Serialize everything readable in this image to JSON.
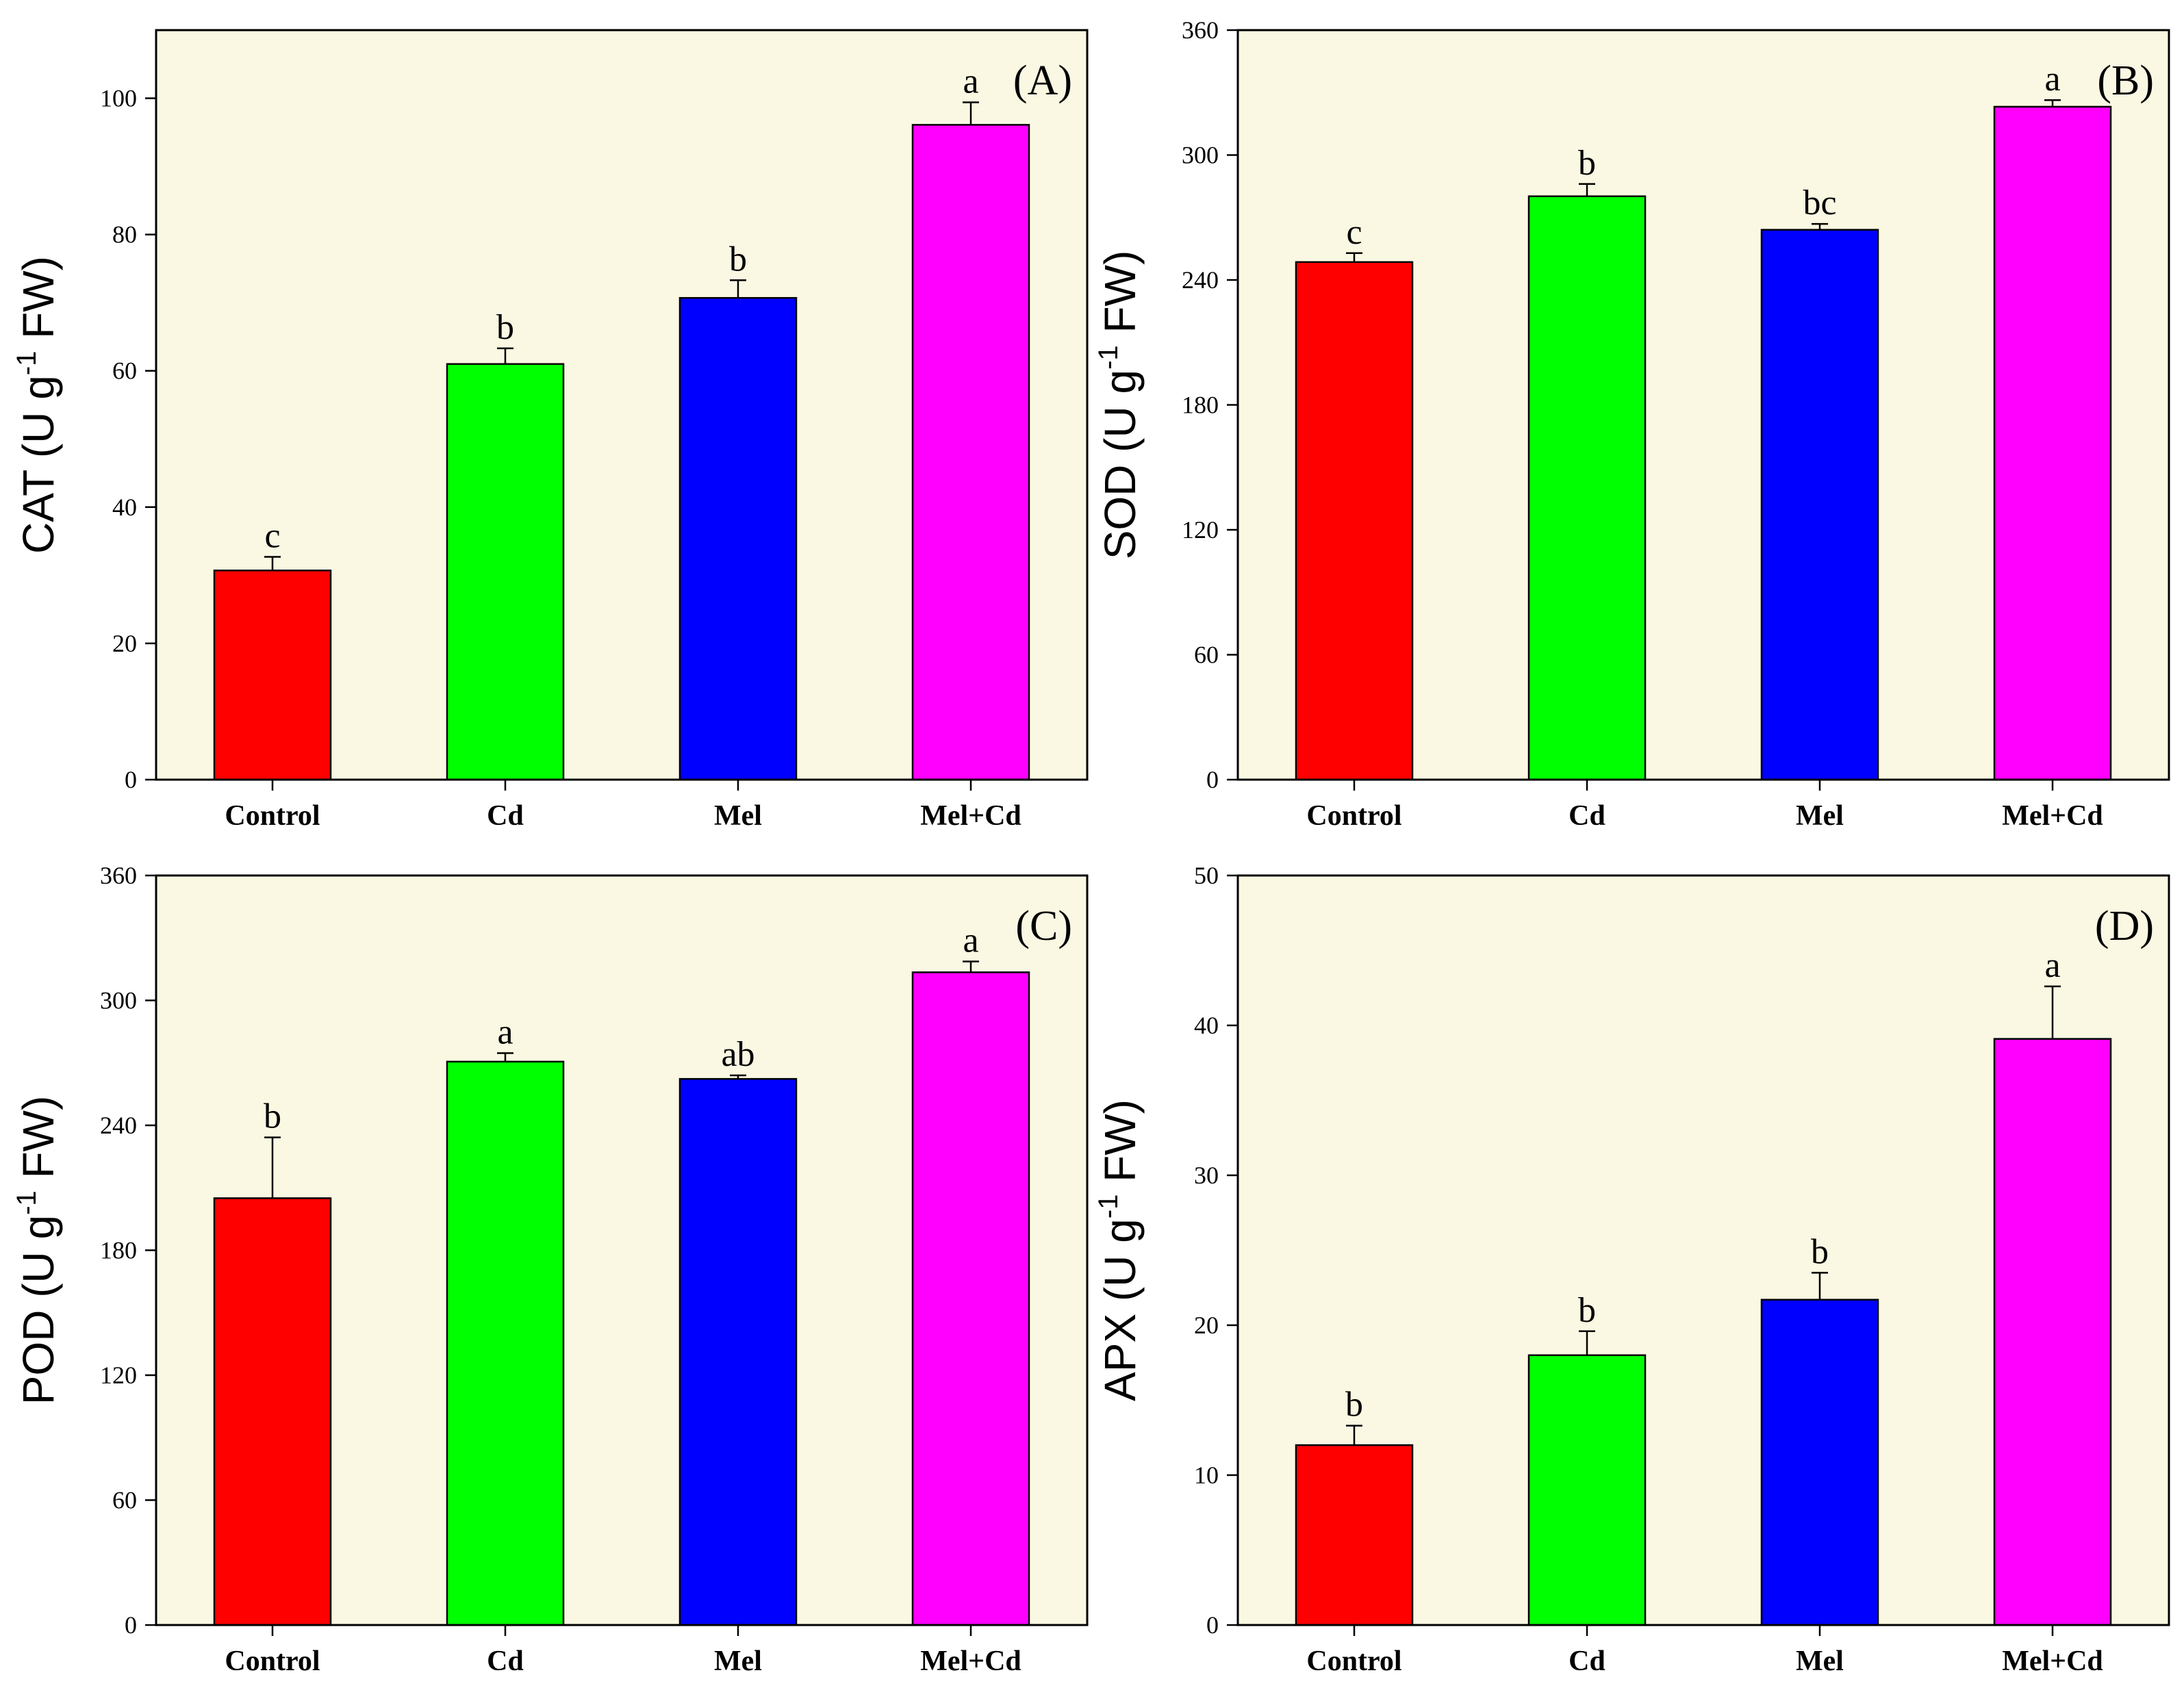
{
  "chart_data": [
    {
      "type": "bar",
      "panel": "(A)",
      "ylabel_main": "CAT (U g",
      "ylabel_sup": "-1",
      "ylabel_end": " FW)",
      "categories": [
        "Control",
        "Cd",
        "Mel",
        "Mel+Cd"
      ],
      "values": [
        30.7,
        61.0,
        70.7,
        96.1
      ],
      "errors": [
        2.0,
        2.3,
        2.6,
        3.3
      ],
      "significance": [
        "c",
        "b",
        "b",
        "a"
      ],
      "colors": [
        "#ff0000",
        "#00ff00",
        "#0000ff",
        "#ff00ff"
      ],
      "ylim": [
        0,
        110
      ],
      "yticks": [
        0,
        20,
        40,
        60,
        80,
        100
      ],
      "legend_location": "top-right"
    },
    {
      "type": "bar",
      "panel": "(B)",
      "ylabel_main": "SOD (U g",
      "ylabel_sup": "-1",
      "ylabel_end": " FW)",
      "categories": [
        "Control",
        "Cd",
        "Mel",
        "Mel+Cd"
      ],
      "values": [
        248.6,
        280.2,
        264.1,
        323.2
      ],
      "errors": [
        4.3,
        5.9,
        2.8,
        3.2
      ],
      "significance": [
        "c",
        "b",
        "bc",
        "a"
      ],
      "colors": [
        "#ff0000",
        "#00ff00",
        "#0000ff",
        "#ff00ff"
      ],
      "ylim": [
        0,
        360
      ],
      "yticks": [
        0,
        60,
        120,
        180,
        240,
        300,
        360
      ],
      "legend_location": "top-right"
    },
    {
      "type": "bar",
      "panel": "(C)",
      "ylabel_main": "POD (U g",
      "ylabel_sup": "-1",
      "ylabel_end": " FW)",
      "categories": [
        "Control",
        "Cd",
        "Mel",
        "Mel+Cd"
      ],
      "values": [
        205.0,
        270.6,
        262.3,
        313.5
      ],
      "errors": [
        29.2,
        4.1,
        1.7,
        5.2
      ],
      "significance": [
        "b",
        "a",
        "ab",
        "a"
      ],
      "colors": [
        "#ff0000",
        "#00ff00",
        "#0000ff",
        "#ff00ff"
      ],
      "ylim": [
        0,
        360
      ],
      "yticks": [
        0,
        60,
        120,
        180,
        240,
        300,
        360
      ],
      "legend_location": "top-right"
    },
    {
      "type": "bar",
      "panel": "(D)",
      "ylabel_main": "APX (U g",
      "ylabel_sup": "-1",
      "ylabel_end": " FW)",
      "categories": [
        "Control",
        "Cd",
        "Mel",
        "Mel+Cd"
      ],
      "values": [
        12.0,
        18.0,
        21.7,
        39.1
      ],
      "errors": [
        1.3,
        1.6,
        1.8,
        3.5
      ],
      "significance": [
        "b",
        "b",
        "b",
        "a"
      ],
      "colors": [
        "#ff0000",
        "#00ff00",
        "#0000ff",
        "#ff00ff"
      ],
      "ylim": [
        0,
        50
      ],
      "yticks": [
        0,
        10,
        20,
        30,
        40,
        50
      ],
      "legend_location": "top-right"
    }
  ],
  "style": {
    "plot_background": "#faf8e2",
    "axis_color": "#000000"
  }
}
